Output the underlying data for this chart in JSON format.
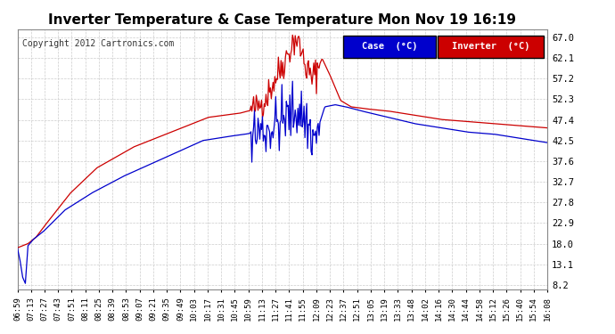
{
  "title": "Inverter Temperature & Case Temperature Mon Nov 19 16:19",
  "copyright": "Copyright 2012 Cartronics.com",
  "legend_case_label": "Case  (°C)",
  "legend_inverter_label": "Inverter  (°C)",
  "case_color": "#0000cc",
  "inverter_color": "#cc0000",
  "legend_case_bg": "#0000cc",
  "legend_inverter_bg": "#cc0000",
  "yticks": [
    8.2,
    13.1,
    18.0,
    22.9,
    27.8,
    32.7,
    37.6,
    42.5,
    47.4,
    52.3,
    57.2,
    62.1,
    67.0
  ],
  "ylim": [
    7.0,
    69.0
  ],
  "background_color": "#ffffff",
  "grid_color": "#cccccc",
  "xtick_labels": [
    "06:59",
    "07:13",
    "07:27",
    "07:43",
    "07:51",
    "08:11",
    "08:25",
    "08:39",
    "08:53",
    "09:07",
    "09:21",
    "09:35",
    "09:49",
    "10:03",
    "10:17",
    "10:31",
    "10:45",
    "10:59",
    "11:13",
    "11:27",
    "11:41",
    "11:55",
    "12:09",
    "12:23",
    "12:37",
    "12:51",
    "13:05",
    "13:19",
    "13:33",
    "13:48",
    "14:02",
    "14:16",
    "14:30",
    "14:44",
    "14:58",
    "15:12",
    "15:26",
    "15:40",
    "15:54",
    "16:08"
  ]
}
